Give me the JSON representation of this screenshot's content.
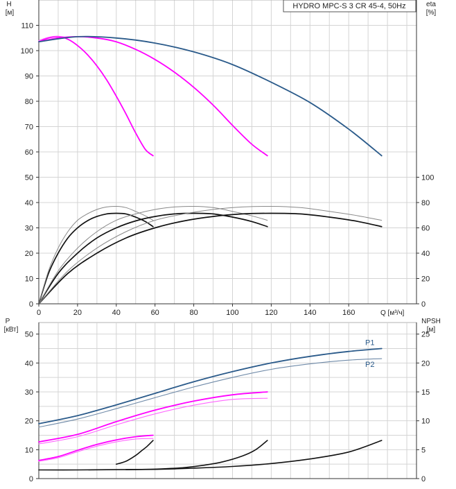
{
  "chart_data": {
    "type": "line",
    "title": "HYDRO MPC-S 3 CR 45-4, 50Hz",
    "x_axis": {
      "label": "Q [м³/ч]",
      "range": [
        0,
        195
      ],
      "ticks": [
        0,
        20,
        40,
        60,
        80,
        100,
        120,
        140,
        160
      ]
    },
    "upper_chart": {
      "left_axis": {
        "label_top": "H",
        "label_unit": "[м]",
        "range": [
          0,
          120
        ],
        "ticks": [
          0,
          10,
          20,
          30,
          40,
          50,
          60,
          70,
          80,
          90,
          100,
          110
        ]
      },
      "right_axis": {
        "label_top": "eta",
        "label_unit": "[%]",
        "range": [
          0,
          240
        ],
        "ticks": [
          0,
          20,
          40,
          60,
          80,
          100
        ]
      },
      "head_curves": [
        {
          "name": "H 1 pump",
          "color": "#ff00ff",
          "x": [
            0,
            5,
            10,
            15,
            20,
            25,
            30,
            35,
            40,
            45,
            50,
            55,
            59
          ],
          "y": [
            103.5,
            105,
            105.5,
            104.5,
            102,
            98.5,
            94,
            88.5,
            82,
            75,
            67.5,
            61,
            58.5
          ]
        },
        {
          "name": "H 1 pump thin",
          "color": "#ff55ff",
          "x": [
            0,
            5,
            10,
            15
          ],
          "y": [
            104,
            105.3,
            105.7,
            105.2
          ]
        },
        {
          "name": "H 2 pumps",
          "color": "#ff00ff",
          "x": [
            0,
            10,
            20,
            30,
            40,
            50,
            60,
            70,
            80,
            90,
            100,
            110,
            118
          ],
          "y": [
            103.5,
            105,
            105.5,
            105,
            103.5,
            100.5,
            96.5,
            91.5,
            85.5,
            78.5,
            70.5,
            63,
            58.5
          ]
        },
        {
          "name": "H 3 pumps",
          "color": "#2a5a8a",
          "x": [
            0,
            20,
            40,
            60,
            80,
            100,
            120,
            140,
            160,
            177
          ],
          "y": [
            103.5,
            105.5,
            105,
            103,
            99.5,
            94.5,
            87.5,
            79.5,
            69,
            58.5
          ]
        }
      ],
      "eta_curves": [
        {
          "name": "eta 1 pump",
          "color": "#111111",
          "x": [
            0,
            5,
            10,
            15,
            20,
            25,
            30,
            35,
            40,
            45,
            50,
            55,
            59
          ],
          "y": [
            0,
            24,
            40,
            52,
            60,
            65.5,
            69,
            71,
            71.5,
            71,
            68.5,
            65,
            61
          ]
        },
        {
          "name": "eta 1 pump thin",
          "color": "#888888",
          "x": [
            0,
            5,
            10,
            15,
            20,
            25,
            30,
            35,
            40,
            45,
            50,
            55,
            59
          ],
          "y": [
            0,
            26,
            44,
            57,
            66,
            71,
            74.5,
            76.5,
            77,
            76,
            73,
            69.5,
            66
          ]
        },
        {
          "name": "eta 2 pumps",
          "color": "#111111",
          "x": [
            0,
            10,
            20,
            30,
            40,
            50,
            60,
            70,
            80,
            90,
            100,
            110,
            118
          ],
          "y": [
            0,
            24,
            40,
            52,
            60,
            65.5,
            69,
            71,
            71.5,
            71,
            68.5,
            65,
            61
          ]
        },
        {
          "name": "eta 2 pumps thin",
          "color": "#888888",
          "x": [
            0,
            10,
            20,
            30,
            40,
            50,
            60,
            70,
            80,
            90,
            100,
            110,
            118
          ],
          "y": [
            0,
            26,
            44,
            57,
            66,
            71,
            74.5,
            76.5,
            77,
            76,
            73,
            69.5,
            66
          ]
        },
        {
          "name": "eta 3 pumps",
          "color": "#111111",
          "x": [
            0,
            15,
            30,
            45,
            60,
            75,
            90,
            105,
            120,
            135,
            150,
            165,
            177
          ],
          "y": [
            0,
            24,
            40,
            52,
            60,
            65.5,
            69,
            71,
            71.5,
            71,
            68.5,
            65,
            61
          ]
        },
        {
          "name": "eta 3 pumps thin",
          "color": "#888888",
          "x": [
            0,
            15,
            30,
            45,
            60,
            75,
            90,
            105,
            120,
            135,
            150,
            165,
            177
          ],
          "y": [
            0,
            26,
            44,
            57,
            66,
            71,
            74.5,
            76.5,
            77,
            76,
            73,
            69.5,
            66
          ]
        }
      ]
    },
    "lower_chart": {
      "left_axis": {
        "label_top": "P",
        "label_unit": "[кВт]",
        "range": [
          0,
          54
        ],
        "ticks": [
          0,
          10,
          20,
          30,
          40,
          50
        ]
      },
      "right_axis": {
        "label_top": "NPSH",
        "label_unit": "[м]",
        "range": [
          0,
          27
        ],
        "ticks": [
          0,
          5,
          10,
          15,
          20,
          25
        ]
      },
      "power_curves": [
        {
          "name": "P1",
          "color": "#2a5a8a",
          "width": 1.8,
          "x": [
            0,
            20,
            40,
            60,
            80,
            100,
            120,
            140,
            160,
            177
          ],
          "y": [
            19,
            21.8,
            25.5,
            29.5,
            33.5,
            37,
            40,
            42.3,
            44,
            45
          ]
        },
        {
          "name": "P2",
          "color": "#6f8aa8",
          "width": 1.1,
          "x": [
            0,
            20,
            40,
            60,
            80,
            100,
            120,
            140,
            160,
            177
          ],
          "y": [
            17.8,
            20.6,
            24.2,
            28,
            31.7,
            35,
            37.8,
            39.7,
            41,
            41.5
          ]
        },
        {
          "name": "P1 2 pumps",
          "color": "#ff00ff",
          "width": 1.8,
          "x": [
            0,
            20,
            40,
            60,
            80,
            100,
            118
          ],
          "y": [
            12.7,
            15.3,
            19.7,
            23.7,
            26.8,
            29,
            30
          ]
        },
        {
          "name": "P2 2 pumps",
          "color": "#ff66ff",
          "width": 1.1,
          "x": [
            0,
            20,
            40,
            60,
            80,
            100,
            118
          ],
          "y": [
            12,
            14.5,
            18.6,
            22.4,
            25.4,
            27.4,
            27.8
          ]
        },
        {
          "name": "P1 1 pump",
          "color": "#ff00ff",
          "width": 1.8,
          "x": [
            0,
            10,
            20,
            30,
            40,
            50,
            59
          ],
          "y": [
            6.3,
            7.6,
            9.8,
            11.8,
            13.4,
            14.5,
            15
          ]
        },
        {
          "name": "P2 1 pump",
          "color": "#ff66ff",
          "width": 1.1,
          "x": [
            0,
            10,
            20,
            30,
            40,
            50,
            59
          ],
          "y": [
            6,
            7.2,
            9.3,
            11.2,
            12.7,
            13.7,
            13.9
          ]
        }
      ],
      "npsh_curves": [
        {
          "name": "NPSH 3 pumps",
          "color": "#111111",
          "x": [
            0,
            20,
            40,
            60,
            80,
            100,
            120,
            140,
            160,
            177
          ],
          "y": [
            1.5,
            1.5,
            1.55,
            1.6,
            1.8,
            2.1,
            2.6,
            3.4,
            4.6,
            6.6
          ]
        },
        {
          "name": "NPSH 2 pumps",
          "color": "#111111",
          "x": [
            45,
            55,
            65,
            75,
            85,
            95,
            105,
            112,
            118
          ],
          "y": [
            1.55,
            1.6,
            1.7,
            1.9,
            2.3,
            2.9,
            3.9,
            5.0,
            6.6
          ]
        },
        {
          "name": "NPSH 1 pump",
          "color": "#111111",
          "x": [
            40,
            45,
            50,
            53,
            56,
            59
          ],
          "y": [
            2.5,
            3.0,
            4.0,
            4.8,
            5.6,
            6.6
          ]
        }
      ],
      "legend": [
        {
          "label": "P1",
          "color": "#2a5a8a"
        },
        {
          "label": "P2",
          "color": "#2a5a8a"
        }
      ]
    }
  }
}
